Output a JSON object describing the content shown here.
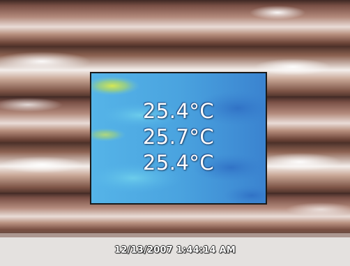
{
  "thermal_overlay": {
    "readings": [
      {
        "value": "25.4°C"
      },
      {
        "value": "25.7°C"
      },
      {
        "value": "25.4°C"
      }
    ]
  },
  "timestamp": "12/13/2007 1:44:14 AM",
  "colors": {
    "thermal_base": "#4aa6e0",
    "thermal_cool": "#3f86d2",
    "thermal_warm": "#c7e05a",
    "pipe_copper": "#9c6f5c",
    "pipe_highlight": "#f2ecea",
    "pipe_dark": "#4a2f28"
  }
}
